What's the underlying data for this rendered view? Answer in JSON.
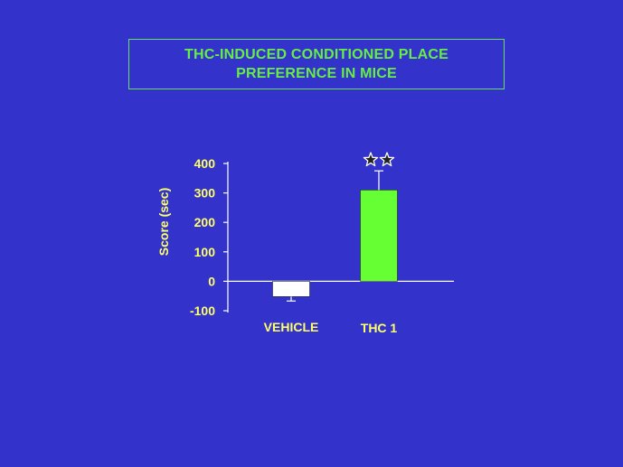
{
  "title": {
    "line1": "THC-INDUCED CONDITIONED PLACE",
    "line2": "PREFERENCE IN MICE"
  },
  "colors": {
    "background": "#3333cc",
    "title_text": "#66ee44",
    "title_border": "#66dd66",
    "axis_text": "#ffff66",
    "axis_line": "#ffffff",
    "bar_vehicle": "#ffffff",
    "bar_thc": "#66ff33"
  },
  "chart_data": {
    "type": "bar",
    "title": "THC-INDUCED CONDITIONED PLACE PREFERENCE IN MICE",
    "categories": [
      "VEHICLE",
      "THC 1"
    ],
    "values": [
      -52,
      310
    ],
    "errors": [
      15,
      65
    ],
    "significance": [
      "",
      "★★"
    ],
    "xlabel": "",
    "ylabel": "Score (sec)",
    "ylim": [
      -100,
      400
    ],
    "yticks": [
      -100,
      0,
      100,
      200,
      300,
      400
    ],
    "bar_colors": [
      "#ffffff",
      "#66ff33"
    ],
    "grid": false,
    "legend": "none"
  }
}
